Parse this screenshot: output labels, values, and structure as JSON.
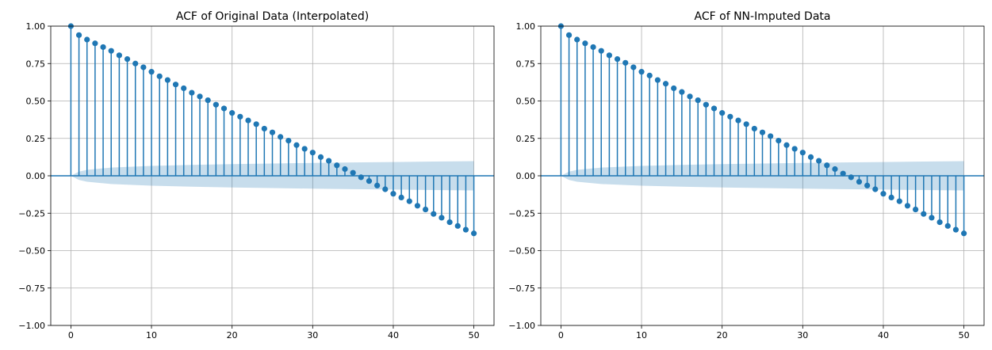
{
  "colors": {
    "stem": "#1f77b4",
    "marker": "#1f77b4",
    "baseline": "#1f77b4",
    "confidence_band": "#1f77b4",
    "grid": "#b0b0b0"
  },
  "chart_data": [
    {
      "type": "stem",
      "title": "ACF of Original Data (Interpolated)",
      "xlabel": "",
      "ylabel": "",
      "xlim": [
        -2.5,
        52.5
      ],
      "ylim": [
        -1.0,
        1.0
      ],
      "xticks": [
        0,
        10,
        20,
        30,
        40,
        50
      ],
      "xtick_labels": [
        "0",
        "10",
        "20",
        "30",
        "40",
        "50"
      ],
      "yticks": [
        -1.0,
        -0.75,
        -0.5,
        -0.25,
        0.0,
        0.25,
        0.5,
        0.75,
        1.0
      ],
      "ytick_labels": [
        "−1.00",
        "−0.75",
        "−0.50",
        "−0.25",
        "0.00",
        "0.25",
        "0.50",
        "0.75",
        "1.00"
      ],
      "grid": true,
      "lags": [
        0,
        1,
        2,
        3,
        4,
        5,
        6,
        7,
        8,
        9,
        10,
        11,
        12,
        13,
        14,
        15,
        16,
        17,
        18,
        19,
        20,
        21,
        22,
        23,
        24,
        25,
        26,
        27,
        28,
        29,
        30,
        31,
        32,
        33,
        34,
        35,
        36,
        37,
        38,
        39,
        40,
        41,
        42,
        43,
        44,
        45,
        46,
        47,
        48,
        49,
        50
      ],
      "values": [
        1.0,
        0.94,
        0.91,
        0.885,
        0.86,
        0.835,
        0.805,
        0.78,
        0.75,
        0.725,
        0.695,
        0.665,
        0.64,
        0.61,
        0.585,
        0.555,
        0.53,
        0.505,
        0.475,
        0.45,
        0.42,
        0.395,
        0.37,
        0.345,
        0.315,
        0.29,
        0.26,
        0.235,
        0.205,
        0.18,
        0.155,
        0.125,
        0.1,
        0.07,
        0.045,
        0.02,
        -0.01,
        -0.035,
        -0.065,
        -0.09,
        -0.12,
        -0.145,
        -0.17,
        -0.2,
        -0.225,
        -0.255,
        -0.28,
        -0.31,
        -0.335,
        -0.36,
        -0.385
      ],
      "confidence_band": {
        "lags": [
          0,
          1,
          2,
          5,
          10,
          15,
          20,
          25,
          30,
          35,
          40,
          45,
          50
        ],
        "upper": [
          0.0,
          0.028,
          0.04,
          0.055,
          0.066,
          0.073,
          0.078,
          0.082,
          0.086,
          0.089,
          0.092,
          0.095,
          0.098
        ],
        "lower": [
          0.0,
          -0.028,
          -0.04,
          -0.055,
          -0.066,
          -0.073,
          -0.078,
          -0.082,
          -0.086,
          -0.089,
          -0.092,
          -0.095,
          -0.098
        ]
      }
    },
    {
      "type": "stem",
      "title": "ACF of NN-Imputed Data",
      "xlabel": "",
      "ylabel": "",
      "xlim": [
        -2.5,
        52.5
      ],
      "ylim": [
        -1.0,
        1.0
      ],
      "xticks": [
        0,
        10,
        20,
        30,
        40,
        50
      ],
      "xtick_labels": [
        "0",
        "10",
        "20",
        "30",
        "40",
        "50"
      ],
      "yticks": [
        -1.0,
        -0.75,
        -0.5,
        -0.25,
        0.0,
        0.25,
        0.5,
        0.75,
        1.0
      ],
      "ytick_labels": [
        "−1.00",
        "−0.75",
        "−0.50",
        "−0.25",
        "0.00",
        "0.25",
        "0.50",
        "0.75",
        "1.00"
      ],
      "grid": true,
      "lags": [
        0,
        1,
        2,
        3,
        4,
        5,
        6,
        7,
        8,
        9,
        10,
        11,
        12,
        13,
        14,
        15,
        16,
        17,
        18,
        19,
        20,
        21,
        22,
        23,
        24,
        25,
        26,
        27,
        28,
        29,
        30,
        31,
        32,
        33,
        34,
        35,
        36,
        37,
        38,
        39,
        40,
        41,
        42,
        43,
        44,
        45,
        46,
        47,
        48,
        49,
        50
      ],
      "values": [
        1.0,
        0.94,
        0.91,
        0.885,
        0.86,
        0.835,
        0.805,
        0.78,
        0.755,
        0.725,
        0.695,
        0.67,
        0.64,
        0.615,
        0.585,
        0.56,
        0.53,
        0.505,
        0.475,
        0.45,
        0.42,
        0.395,
        0.37,
        0.345,
        0.315,
        0.29,
        0.265,
        0.235,
        0.205,
        0.18,
        0.155,
        0.125,
        0.1,
        0.07,
        0.045,
        0.015,
        -0.01,
        -0.04,
        -0.065,
        -0.09,
        -0.12,
        -0.145,
        -0.17,
        -0.2,
        -0.225,
        -0.255,
        -0.28,
        -0.31,
        -0.335,
        -0.36,
        -0.385
      ],
      "confidence_band": {
        "lags": [
          0,
          1,
          2,
          5,
          10,
          15,
          20,
          25,
          30,
          35,
          40,
          45,
          50
        ],
        "upper": [
          0.0,
          0.028,
          0.04,
          0.055,
          0.066,
          0.073,
          0.078,
          0.082,
          0.086,
          0.089,
          0.092,
          0.095,
          0.098
        ],
        "lower": [
          0.0,
          -0.028,
          -0.04,
          -0.055,
          -0.066,
          -0.073,
          -0.078,
          -0.082,
          -0.086,
          -0.089,
          -0.092,
          -0.095,
          -0.098
        ]
      }
    }
  ]
}
